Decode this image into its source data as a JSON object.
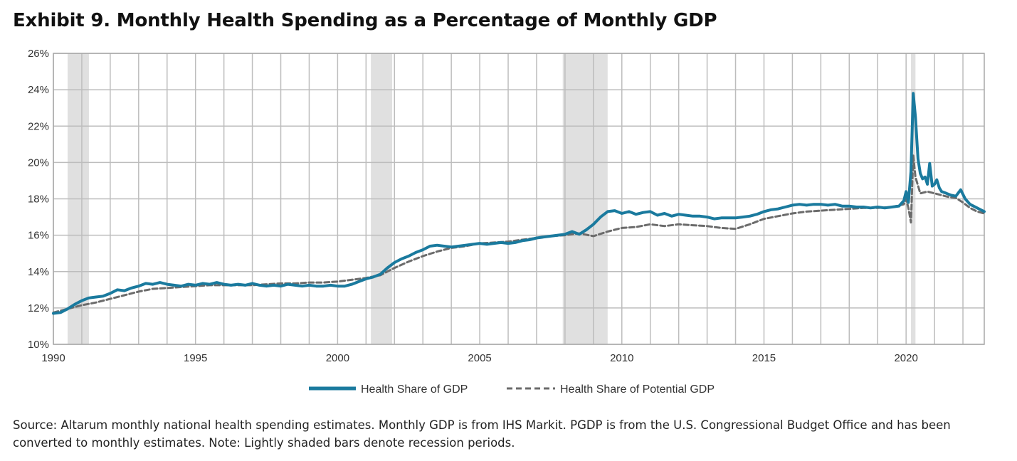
{
  "title": "Exhibit 9. Monthly Health Spending as a Percentage of Monthly GDP",
  "source": "Source: Altarum monthly national health spending estimates. Monthly GDP is from IHS Markit. PGDP is from the U.S. Congressional Budget Office and has been converted to monthly estimates. Note: Lightly shaded bars denote recession periods.",
  "colors": {
    "health_share": "#1a7a9e",
    "potential": "#6b6b6b",
    "recession": "#e0e0e0",
    "grid": "#bdbdbd"
  },
  "chart_data": {
    "type": "line",
    "xlim": [
      1990,
      2022.75
    ],
    "ylim": [
      10,
      26
    ],
    "y_ticks": [
      10,
      12,
      14,
      16,
      18,
      20,
      22,
      24,
      26
    ],
    "y_tick_labels": [
      "10%",
      "12%",
      "14%",
      "16%",
      "18%",
      "20%",
      "22%",
      "24%",
      "26%"
    ],
    "x_ticks": [
      1990,
      1995,
      2000,
      2005,
      2010,
      2015,
      2020
    ],
    "x_tick_labels": [
      "1990",
      "1995",
      "2000",
      "2005",
      "2010",
      "2015",
      "2020"
    ],
    "grid": true,
    "legend_position": "bottom",
    "recessions": [
      [
        1990.5,
        1991.25
      ],
      [
        2001.17,
        2001.92
      ],
      [
        2007.92,
        2009.5
      ],
      [
        2020.17,
        2020.33
      ]
    ],
    "series": [
      {
        "name": "Health Share of GDP",
        "style": "solid",
        "points": [
          [
            1990.0,
            11.7
          ],
          [
            1990.25,
            11.75
          ],
          [
            1990.5,
            11.95
          ],
          [
            1990.75,
            12.2
          ],
          [
            1991.0,
            12.4
          ],
          [
            1991.25,
            12.55
          ],
          [
            1991.5,
            12.6
          ],
          [
            1991.75,
            12.65
          ],
          [
            1992.0,
            12.8
          ],
          [
            1992.25,
            13.0
          ],
          [
            1992.5,
            12.95
          ],
          [
            1992.75,
            13.1
          ],
          [
            1993.0,
            13.2
          ],
          [
            1993.25,
            13.35
          ],
          [
            1993.5,
            13.3
          ],
          [
            1993.75,
            13.4
          ],
          [
            1994.0,
            13.3
          ],
          [
            1994.25,
            13.25
          ],
          [
            1994.5,
            13.2
          ],
          [
            1994.75,
            13.3
          ],
          [
            1995.0,
            13.25
          ],
          [
            1995.25,
            13.35
          ],
          [
            1995.5,
            13.3
          ],
          [
            1995.75,
            13.4
          ],
          [
            1996.0,
            13.3
          ],
          [
            1996.25,
            13.25
          ],
          [
            1996.5,
            13.3
          ],
          [
            1996.75,
            13.25
          ],
          [
            1997.0,
            13.35
          ],
          [
            1997.25,
            13.25
          ],
          [
            1997.5,
            13.2
          ],
          [
            1997.75,
            13.25
          ],
          [
            1998.0,
            13.2
          ],
          [
            1998.25,
            13.3
          ],
          [
            1998.5,
            13.25
          ],
          [
            1998.75,
            13.2
          ],
          [
            1999.0,
            13.25
          ],
          [
            1999.25,
            13.2
          ],
          [
            1999.5,
            13.2
          ],
          [
            1999.75,
            13.25
          ],
          [
            2000.0,
            13.2
          ],
          [
            2000.25,
            13.2
          ],
          [
            2000.5,
            13.3
          ],
          [
            2000.75,
            13.45
          ],
          [
            2001.0,
            13.6
          ],
          [
            2001.25,
            13.7
          ],
          [
            2001.5,
            13.85
          ],
          [
            2001.75,
            14.2
          ],
          [
            2002.0,
            14.5
          ],
          [
            2002.25,
            14.7
          ],
          [
            2002.5,
            14.85
          ],
          [
            2002.75,
            15.05
          ],
          [
            2003.0,
            15.2
          ],
          [
            2003.25,
            15.4
          ],
          [
            2003.5,
            15.45
          ],
          [
            2003.75,
            15.4
          ],
          [
            2004.0,
            15.35
          ],
          [
            2004.25,
            15.4
          ],
          [
            2004.5,
            15.45
          ],
          [
            2004.75,
            15.5
          ],
          [
            2005.0,
            15.55
          ],
          [
            2005.25,
            15.5
          ],
          [
            2005.5,
            15.55
          ],
          [
            2005.75,
            15.6
          ],
          [
            2006.0,
            15.55
          ],
          [
            2006.25,
            15.6
          ],
          [
            2006.5,
            15.7
          ],
          [
            2006.75,
            15.75
          ],
          [
            2007.0,
            15.85
          ],
          [
            2007.25,
            15.9
          ],
          [
            2007.5,
            15.95
          ],
          [
            2007.75,
            16.0
          ],
          [
            2008.0,
            16.05
          ],
          [
            2008.25,
            16.2
          ],
          [
            2008.5,
            16.05
          ],
          [
            2008.75,
            16.3
          ],
          [
            2009.0,
            16.6
          ],
          [
            2009.25,
            17.0
          ],
          [
            2009.5,
            17.3
          ],
          [
            2009.75,
            17.35
          ],
          [
            2010.0,
            17.2
          ],
          [
            2010.25,
            17.3
          ],
          [
            2010.5,
            17.15
          ],
          [
            2010.75,
            17.25
          ],
          [
            2011.0,
            17.3
          ],
          [
            2011.25,
            17.1
          ],
          [
            2011.5,
            17.2
          ],
          [
            2011.75,
            17.05
          ],
          [
            2012.0,
            17.15
          ],
          [
            2012.25,
            17.1
          ],
          [
            2012.5,
            17.05
          ],
          [
            2012.75,
            17.05
          ],
          [
            2013.0,
            17.0
          ],
          [
            2013.25,
            16.9
          ],
          [
            2013.5,
            16.95
          ],
          [
            2013.75,
            16.95
          ],
          [
            2014.0,
            16.95
          ],
          [
            2014.25,
            17.0
          ],
          [
            2014.5,
            17.05
          ],
          [
            2014.75,
            17.15
          ],
          [
            2015.0,
            17.3
          ],
          [
            2015.25,
            17.4
          ],
          [
            2015.5,
            17.45
          ],
          [
            2015.75,
            17.55
          ],
          [
            2016.0,
            17.65
          ],
          [
            2016.25,
            17.7
          ],
          [
            2016.5,
            17.65
          ],
          [
            2016.75,
            17.7
          ],
          [
            2017.0,
            17.7
          ],
          [
            2017.25,
            17.65
          ],
          [
            2017.5,
            17.7
          ],
          [
            2017.75,
            17.6
          ],
          [
            2018.0,
            17.6
          ],
          [
            2018.25,
            17.55
          ],
          [
            2018.5,
            17.55
          ],
          [
            2018.75,
            17.5
          ],
          [
            2019.0,
            17.55
          ],
          [
            2019.25,
            17.5
          ],
          [
            2019.5,
            17.55
          ],
          [
            2019.75,
            17.6
          ],
          [
            2019.92,
            17.9
          ],
          [
            2020.0,
            18.4
          ],
          [
            2020.08,
            17.8
          ],
          [
            2020.17,
            19.5
          ],
          [
            2020.25,
            23.8
          ],
          [
            2020.33,
            22.5
          ],
          [
            2020.42,
            20.2
          ],
          [
            2020.5,
            19.4
          ],
          [
            2020.58,
            19.1
          ],
          [
            2020.67,
            19.2
          ],
          [
            2020.75,
            18.8
          ],
          [
            2020.83,
            19.95
          ],
          [
            2020.92,
            18.7
          ],
          [
            2021.0,
            18.8
          ],
          [
            2021.08,
            19.05
          ],
          [
            2021.17,
            18.6
          ],
          [
            2021.25,
            18.4
          ],
          [
            2021.42,
            18.3
          ],
          [
            2021.58,
            18.2
          ],
          [
            2021.75,
            18.15
          ],
          [
            2021.92,
            18.5
          ],
          [
            2022.08,
            18.0
          ],
          [
            2022.25,
            17.7
          ],
          [
            2022.5,
            17.5
          ],
          [
            2022.75,
            17.3
          ]
        ]
      },
      {
        "name": "Health Share of Potential GDP",
        "style": "dashed",
        "points": [
          [
            1990.0,
            11.75
          ],
          [
            1990.5,
            11.95
          ],
          [
            1991.0,
            12.15
          ],
          [
            1991.5,
            12.3
          ],
          [
            1992.0,
            12.5
          ],
          [
            1992.5,
            12.7
          ],
          [
            1993.0,
            12.9
          ],
          [
            1993.5,
            13.05
          ],
          [
            1994.0,
            13.1
          ],
          [
            1994.5,
            13.15
          ],
          [
            1995.0,
            13.2
          ],
          [
            1995.5,
            13.25
          ],
          [
            1996.0,
            13.25
          ],
          [
            1996.5,
            13.25
          ],
          [
            1997.0,
            13.25
          ],
          [
            1997.5,
            13.3
          ],
          [
            1998.0,
            13.35
          ],
          [
            1998.5,
            13.35
          ],
          [
            1999.0,
            13.4
          ],
          [
            1999.5,
            13.4
          ],
          [
            2000.0,
            13.45
          ],
          [
            2000.5,
            13.55
          ],
          [
            2001.0,
            13.65
          ],
          [
            2001.5,
            13.8
          ],
          [
            2002.0,
            14.2
          ],
          [
            2002.5,
            14.55
          ],
          [
            2003.0,
            14.85
          ],
          [
            2003.5,
            15.1
          ],
          [
            2004.0,
            15.3
          ],
          [
            2004.5,
            15.4
          ],
          [
            2005.0,
            15.55
          ],
          [
            2005.5,
            15.6
          ],
          [
            2006.0,
            15.65
          ],
          [
            2006.5,
            15.75
          ],
          [
            2007.0,
            15.85
          ],
          [
            2007.5,
            15.95
          ],
          [
            2008.0,
            16.0
          ],
          [
            2008.5,
            16.1
          ],
          [
            2009.0,
            15.95
          ],
          [
            2009.5,
            16.2
          ],
          [
            2010.0,
            16.4
          ],
          [
            2010.5,
            16.45
          ],
          [
            2011.0,
            16.6
          ],
          [
            2011.5,
            16.5
          ],
          [
            2012.0,
            16.6
          ],
          [
            2012.5,
            16.55
          ],
          [
            2013.0,
            16.5
          ],
          [
            2013.5,
            16.4
          ],
          [
            2014.0,
            16.35
          ],
          [
            2014.5,
            16.6
          ],
          [
            2015.0,
            16.9
          ],
          [
            2015.5,
            17.05
          ],
          [
            2016.0,
            17.2
          ],
          [
            2016.5,
            17.3
          ],
          [
            2017.0,
            17.35
          ],
          [
            2017.5,
            17.4
          ],
          [
            2018.0,
            17.45
          ],
          [
            2018.5,
            17.5
          ],
          [
            2019.0,
            17.5
          ],
          [
            2019.5,
            17.55
          ],
          [
            2019.92,
            17.7
          ],
          [
            2020.0,
            18.0
          ],
          [
            2020.08,
            17.5
          ],
          [
            2020.17,
            16.7
          ],
          [
            2020.25,
            20.4
          ],
          [
            2020.33,
            19.2
          ],
          [
            2020.5,
            18.3
          ],
          [
            2020.75,
            18.4
          ],
          [
            2021.0,
            18.3
          ],
          [
            2021.25,
            18.2
          ],
          [
            2021.5,
            18.1
          ],
          [
            2021.75,
            18.05
          ],
          [
            2022.0,
            17.8
          ],
          [
            2022.25,
            17.5
          ],
          [
            2022.5,
            17.3
          ],
          [
            2022.75,
            17.2
          ]
        ]
      }
    ]
  }
}
